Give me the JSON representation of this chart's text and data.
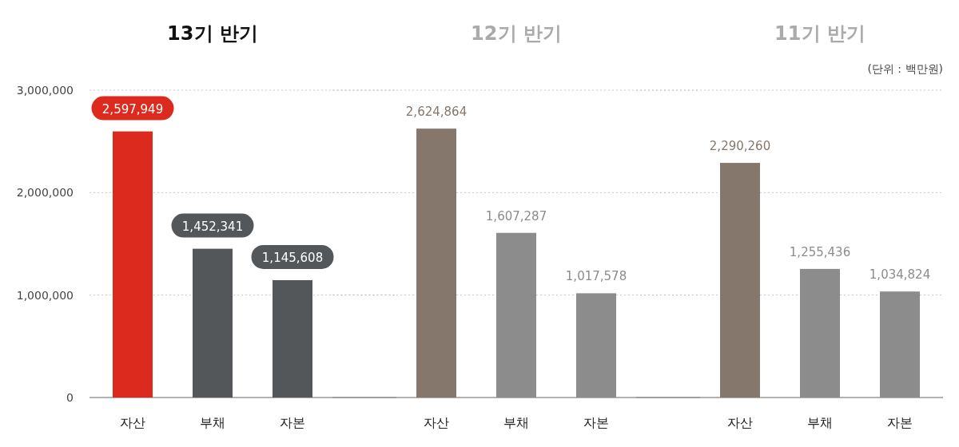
{
  "chart_data": [
    {
      "type": "bar",
      "title": "13기 반기",
      "categories": [
        "자산",
        "부채",
        "자본"
      ],
      "values": [
        2597949,
        1452341,
        1145608
      ],
      "value_labels": [
        "2,597,949",
        "1,452,341",
        "1,145,608"
      ],
      "colors": [
        "#dd2a1f",
        "#53575a",
        "#53575a"
      ],
      "ylim": [
        0,
        3000000
      ],
      "yticks": [
        0,
        {
          "value": 1000000,
          "label": "1,000,000"
        },
        {
          "value": 2000000,
          "label": "2,000,000"
        },
        {
          "value": 3000000,
          "label": "3,000,000"
        }
      ],
      "grid": "y"
    },
    {
      "type": "bar",
      "title": "12기 반기",
      "categories": [
        "자산",
        "부채",
        "자본"
      ],
      "values": [
        2624864,
        1607287,
        1017578
      ],
      "value_labels": [
        "2,624,864",
        "1,607,287",
        "1,017,578"
      ],
      "colors": [
        "#85776b",
        "#8c8c8c",
        "#8c8c8c"
      ],
      "ylim": [
        0,
        3000000
      ],
      "grid": "y",
      "tick_labels": "x"
    },
    {
      "type": "bar",
      "title": "11기 반기",
      "categories": [
        "자산",
        "부채",
        "자본"
      ],
      "values": [
        2290260,
        1255436,
        1034824
      ],
      "value_labels": [
        "2,290,260",
        "1,255,436",
        "1,034,824"
      ],
      "colors": [
        "#85776b",
        "#8c8c8c",
        "#8c8c8c"
      ],
      "ylim": [
        0,
        3000000
      ],
      "grid": "y",
      "tick_labels": "x",
      "annotations": [
        "(단위 : 백만원)"
      ]
    }
  ]
}
